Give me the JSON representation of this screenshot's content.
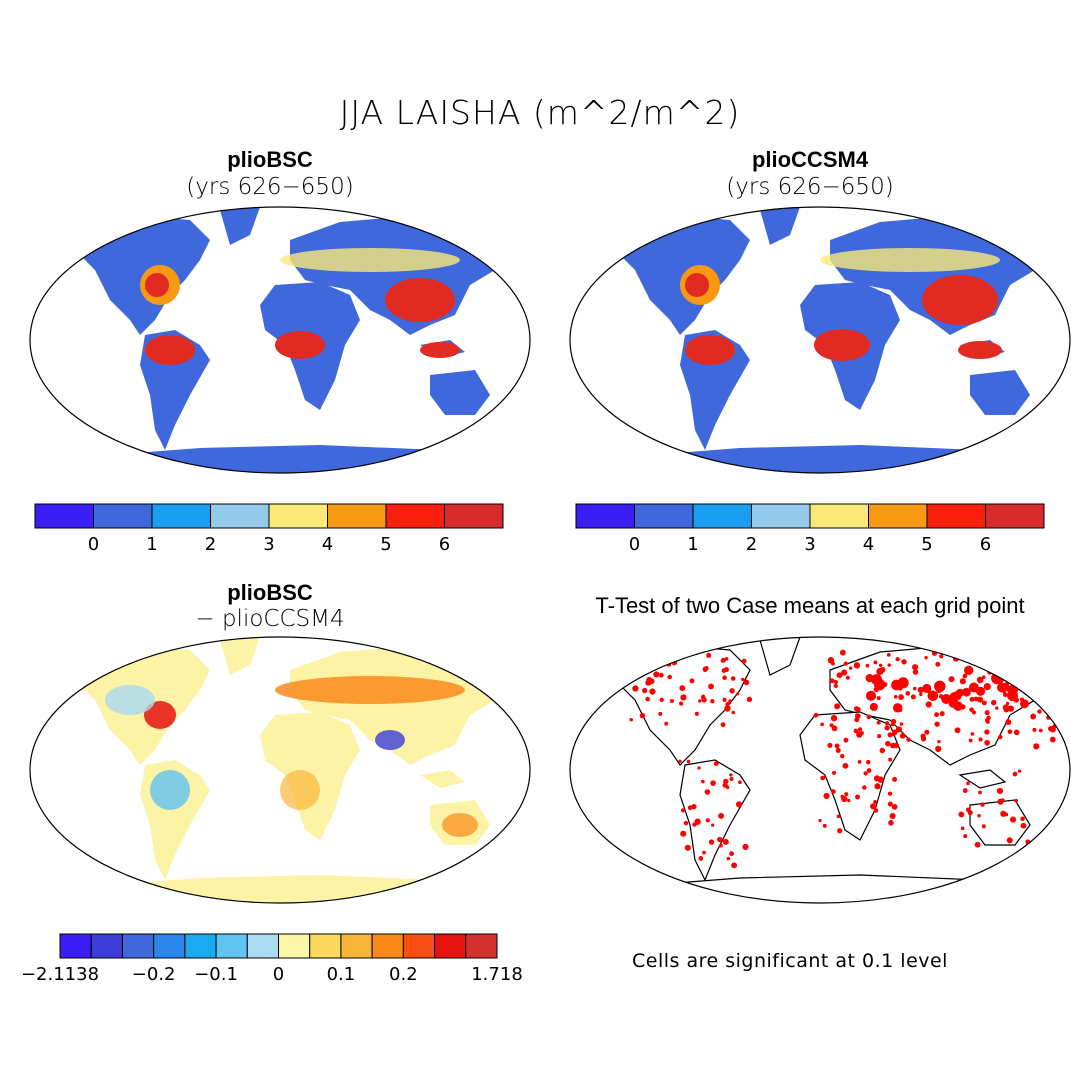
{
  "figure": {
    "title": "JJA LAISHA (m^2/m^2)"
  },
  "panels": [
    {
      "title": "plioBSC",
      "subtitle": "(yrs 626−650)"
    },
    {
      "title": "plioCCSM4",
      "subtitle": "(yrs 626−650)"
    },
    {
      "title": "plioBSC",
      "subtitle": "− plioCCSM4"
    },
    {
      "title": "T-Test of two Case means at each grid point",
      "subtitle": ""
    }
  ],
  "note": "Cells are significant at 0.1 level",
  "colorbar_main": {
    "colors": [
      "#3a1ef5",
      "#3e68db",
      "#1a9ff0",
      "#94cbea",
      "#fbe97a",
      "#f79a12",
      "#fb1f0d",
      "#d62b2b"
    ],
    "labels": [
      "0",
      "1",
      "2",
      "3",
      "4",
      "5",
      "6"
    ]
  },
  "colorbar_diff": {
    "colors": [
      "#3a1ef5",
      "#3b3ed8",
      "#3e68db",
      "#2a86ea",
      "#1aaaf2",
      "#60c3f2",
      "#a9daf2",
      "#fdf5a8",
      "#fcd95c",
      "#f9b53a",
      "#f98a1a",
      "#f94e14",
      "#e5120f",
      "#d43030"
    ],
    "labels": [
      "−2.1138",
      "−0.2",
      "−0.1",
      "0",
      "0.1",
      "0.2",
      "1.718"
    ]
  },
  "legend_colors": {
    "significant": "#ff0000",
    "map_blue": "#3e68db",
    "map_red": "#e02a22",
    "diff_yellow": "#fdf3a6"
  }
}
